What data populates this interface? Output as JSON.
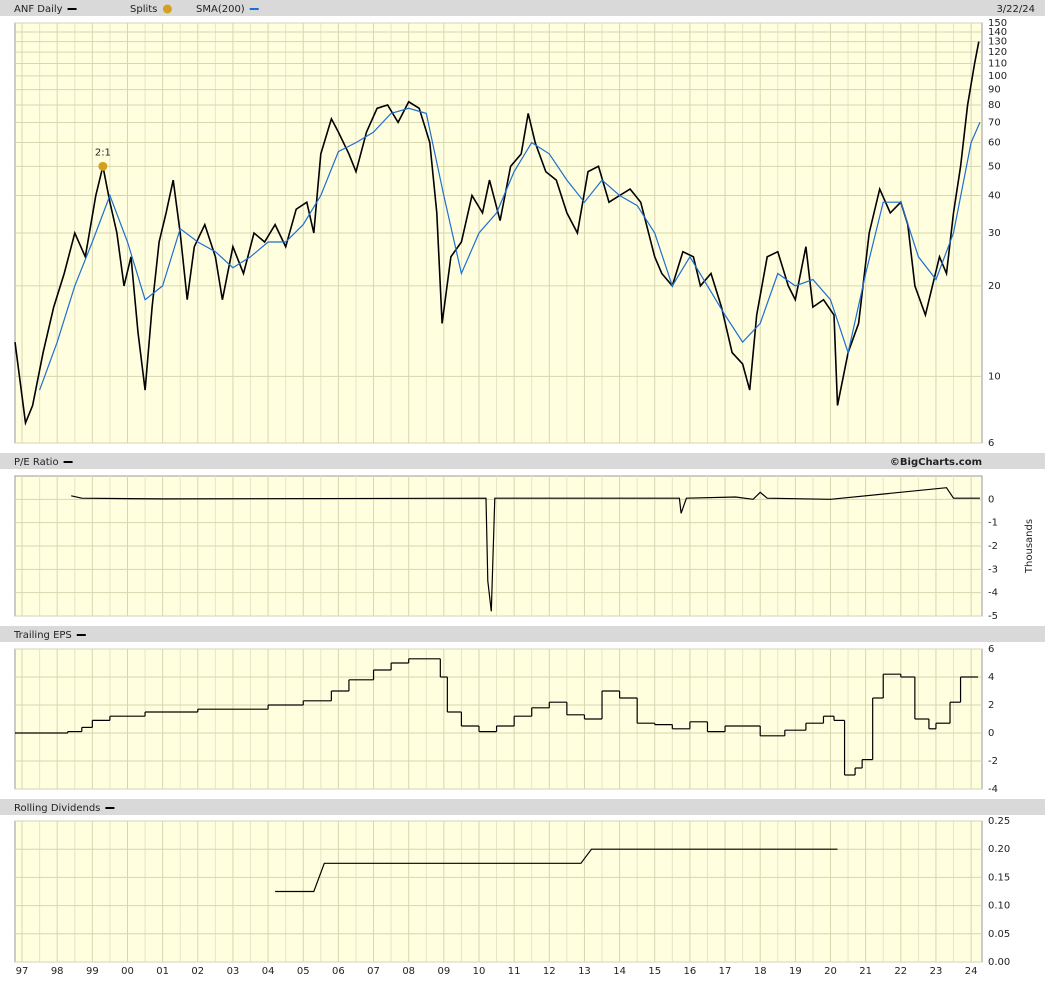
{
  "chart_data": [
    {
      "type": "line",
      "log": true,
      "grid": true,
      "date": "3/22/24",
      "xlim": [
        1996.8,
        2024.31
      ],
      "ylim": [
        6,
        150
      ],
      "yticks": [
        6,
        10,
        20,
        30,
        40,
        50,
        60,
        70,
        80,
        90,
        100,
        110,
        120,
        130,
        140,
        150
      ],
      "series": [
        {
          "name": "ANF Daily",
          "color": "#000000",
          "x": [
            1996.8,
            1997.1,
            1997.3,
            1997.6,
            1997.9,
            1998.2,
            1998.5,
            1998.8,
            1999.1,
            1999.3,
            1999.5,
            1999.7,
            1999.9,
            2000.1,
            2000.3,
            2000.5,
            2000.7,
            2000.9,
            2001.1,
            2001.3,
            2001.5,
            2001.7,
            2001.9,
            2002.2,
            2002.5,
            2002.7,
            2003.0,
            2003.3,
            2003.6,
            2003.9,
            2004.2,
            2004.5,
            2004.8,
            2005.1,
            2005.3,
            2005.5,
            2005.8,
            2006.0,
            2006.3,
            2006.5,
            2006.8,
            2007.1,
            2007.4,
            2007.7,
            2008.0,
            2008.3,
            2008.6,
            2008.8,
            2008.95,
            2009.2,
            2009.5,
            2009.8,
            2010.1,
            2010.3,
            2010.6,
            2010.9,
            2011.2,
            2011.4,
            2011.6,
            2011.9,
            2012.2,
            2012.5,
            2012.8,
            2013.1,
            2013.4,
            2013.7,
            2014.0,
            2014.3,
            2014.6,
            2015.0,
            2015.2,
            2015.5,
            2015.8,
            2016.1,
            2016.3,
            2016.6,
            2016.9,
            2017.2,
            2017.5,
            2017.7,
            2017.9,
            2018.2,
            2018.5,
            2018.8,
            2019.0,
            2019.3,
            2019.5,
            2019.8,
            2020.1,
            2020.2,
            2020.5,
            2020.8,
            2021.1,
            2021.4,
            2021.7,
            2022.0,
            2022.2,
            2022.4,
            2022.7,
            2022.9,
            2023.1,
            2023.3,
            2023.5,
            2023.7,
            2023.9,
            2024.1,
            2024.22
          ],
          "values": [
            13,
            7,
            8,
            12,
            17,
            22,
            30,
            25,
            40,
            50,
            38,
            30,
            20,
            25,
            14,
            9,
            17,
            28,
            35,
            45,
            30,
            18,
            27,
            32,
            25,
            18,
            27,
            22,
            30,
            28,
            32,
            27,
            36,
            38,
            30,
            55,
            72,
            65,
            55,
            48,
            65,
            78,
            80,
            70,
            82,
            78,
            60,
            35,
            15,
            25,
            28,
            40,
            35,
            45,
            33,
            50,
            55,
            75,
            60,
            48,
            45,
            35,
            30,
            48,
            50,
            38,
            40,
            42,
            38,
            25,
            22,
            20,
            26,
            25,
            20,
            22,
            17,
            12,
            11,
            9,
            16,
            25,
            26,
            20,
            18,
            27,
            17,
            18,
            16,
            8,
            12,
            15,
            30,
            42,
            35,
            38,
            32,
            20,
            16,
            20,
            25,
            22,
            35,
            50,
            80,
            110,
            130
          ]
        },
        {
          "name": "SMA(200)",
          "color": "#1f6fd0",
          "x": [
            1997.5,
            1998,
            1998.5,
            1999,
            1999.5,
            2000,
            2000.5,
            2001,
            2001.5,
            2002,
            2002.5,
            2003,
            2003.5,
            2004,
            2004.5,
            2005,
            2005.5,
            2006,
            2006.5,
            2007,
            2007.5,
            2008,
            2008.5,
            2009,
            2009.5,
            2010,
            2010.5,
            2011,
            2011.5,
            2012,
            2012.5,
            2013,
            2013.5,
            2014,
            2014.5,
            2015,
            2015.5,
            2016,
            2016.5,
            2017,
            2017.5,
            2018,
            2018.5,
            2019,
            2019.5,
            2020,
            2020.5,
            2021,
            2021.5,
            2022,
            2022.5,
            2023,
            2023.5,
            2024,
            2024.25
          ],
          "values": [
            9,
            13,
            20,
            28,
            40,
            28,
            18,
            20,
            31,
            28,
            26,
            23,
            25,
            28,
            28,
            32,
            40,
            56,
            60,
            65,
            75,
            78,
            75,
            40,
            22,
            30,
            35,
            48,
            60,
            55,
            45,
            38,
            45,
            40,
            37,
            30,
            20,
            25,
            20,
            16,
            13,
            15,
            22,
            20,
            21,
            18,
            12,
            22,
            38,
            38,
            25,
            21,
            30,
            60,
            70
          ]
        }
      ],
      "splits": {
        "name": "Splits",
        "color": "#d4a020",
        "points": [
          {
            "x": 1999.3,
            "y": 50,
            "label": "2:1"
          }
        ]
      }
    },
    {
      "type": "line",
      "grid": true,
      "source": "©BigCharts.com",
      "y_label": "Thousands",
      "xlim": [
        1996.8,
        2024.31
      ],
      "ylim": [
        -5,
        1
      ],
      "yticks": [
        0,
        -1,
        -2,
        -3,
        -4,
        -5
      ],
      "series": [
        {
          "name": "P/E Ratio",
          "color": "#000000",
          "x": [
            1998.4,
            1998.7,
            2001,
            2010.2,
            2010.25,
            2010.35,
            2010.45,
            2015.7,
            2015.75,
            2015.9,
            2017.3,
            2017.8,
            2018.0,
            2018.2,
            2020,
            2023.3,
            2023.5,
            2024.25
          ],
          "values": [
            0.15,
            0.05,
            0.02,
            0.05,
            -3.5,
            -4.8,
            0.05,
            0.05,
            -0.6,
            0.05,
            0.1,
            0,
            0.3,
            0.05,
            0,
            0.5,
            0.05,
            0.05
          ]
        }
      ]
    },
    {
      "type": "step",
      "grid": true,
      "xlim": [
        1996.8,
        2024.31
      ],
      "ylim": [
        -4,
        6
      ],
      "yticks": [
        6,
        4,
        2,
        0,
        -2,
        -4
      ],
      "series": [
        {
          "name": "Trailing EPS",
          "color": "#000000",
          "x": [
            1996.8,
            1998.3,
            1998.7,
            1999.0,
            1999.5,
            2000.5,
            2002.0,
            2004,
            2005,
            2005.8,
            2006.3,
            2007,
            2007.5,
            2008,
            2008.9,
            2009.1,
            2009.5,
            2010,
            2010.5,
            2011,
            2011.5,
            2012,
            2012.5,
            2013,
            2013.5,
            2014.0,
            2014.5,
            2015,
            2015.5,
            2016,
            2016.5,
            2017,
            2017.5,
            2018.0,
            2018.7,
            2019.3,
            2019.8,
            2020.1,
            2020.4,
            2020.7,
            2020.9,
            2021.2,
            2021.5,
            2022.0,
            2022.4,
            2022.8,
            2023.0,
            2023.4,
            2023.7
          ],
          "values": [
            0,
            0.1,
            0.4,
            0.9,
            1.2,
            1.5,
            1.7,
            2.0,
            2.3,
            3.0,
            3.8,
            4.5,
            5,
            5.3,
            4.0,
            1.5,
            0.5,
            0.1,
            0.5,
            1.2,
            1.8,
            2.2,
            1.3,
            1.0,
            3.0,
            2.5,
            0.7,
            0.6,
            0.3,
            0.8,
            0.1,
            0.5,
            0.5,
            -0.2,
            0.2,
            0.7,
            1.2,
            0.9,
            -3,
            -2.5,
            -1.9,
            2.5,
            4.2,
            4.0,
            1.0,
            0.3,
            0.7,
            2.2,
            4.0
          ]
        }
      ]
    },
    {
      "type": "line",
      "grid": true,
      "xlim": [
        1996.8,
        2024.31
      ],
      "ylim": [
        0,
        0.25
      ],
      "yticks": [
        0.25,
        {
          "value": 0.2,
          "label": "0.20"
        },
        0.15,
        {
          "value": 0.1,
          "label": "0.10"
        },
        0.05,
        {
          "value": 0,
          "label": "0.00"
        }
      ],
      "xticks": [
        {
          "value": 1997,
          "label": "97"
        },
        {
          "value": 1998,
          "label": "98"
        },
        {
          "value": 1999,
          "label": "99"
        },
        {
          "value": 2000,
          "label": "00"
        },
        {
          "value": 2001,
          "label": "01"
        },
        {
          "value": 2002,
          "label": "02"
        },
        {
          "value": 2003,
          "label": "03"
        },
        {
          "value": 2004,
          "label": "04"
        },
        {
          "value": 2005,
          "label": "05"
        },
        {
          "value": 2006,
          "label": "06"
        },
        {
          "value": 2007,
          "label": "07"
        },
        {
          "value": 2008,
          "label": "08"
        },
        {
          "value": 2009,
          "label": "09"
        },
        {
          "value": 2010,
          "label": "10"
        },
        {
          "value": 2011,
          "label": "11"
        },
        {
          "value": 2012,
          "label": "12"
        },
        {
          "value": 2013,
          "label": "13"
        },
        {
          "value": 2014,
          "label": "14"
        },
        {
          "value": 2015,
          "label": "15"
        },
        {
          "value": 2016,
          "label": "16"
        },
        {
          "value": 2017,
          "label": "17"
        },
        {
          "value": 2018,
          "label": "18"
        },
        {
          "value": 2019,
          "label": "19"
        },
        {
          "value": 2020,
          "label": "20"
        },
        {
          "value": 2021,
          "label": "21"
        },
        {
          "value": 2022,
          "label": "22"
        },
        {
          "value": 2023,
          "label": "23"
        },
        {
          "value": 2024,
          "label": "24"
        }
      ],
      "series": [
        {
          "name": "Rolling Dividends",
          "color": "#000000",
          "x": [
            2004.2,
            2005.3,
            2005.6,
            2012.9,
            2013.2,
            2020.2
          ],
          "values": [
            0.125,
            0.125,
            0.175,
            0.175,
            0.2,
            0.2
          ]
        }
      ]
    }
  ]
}
